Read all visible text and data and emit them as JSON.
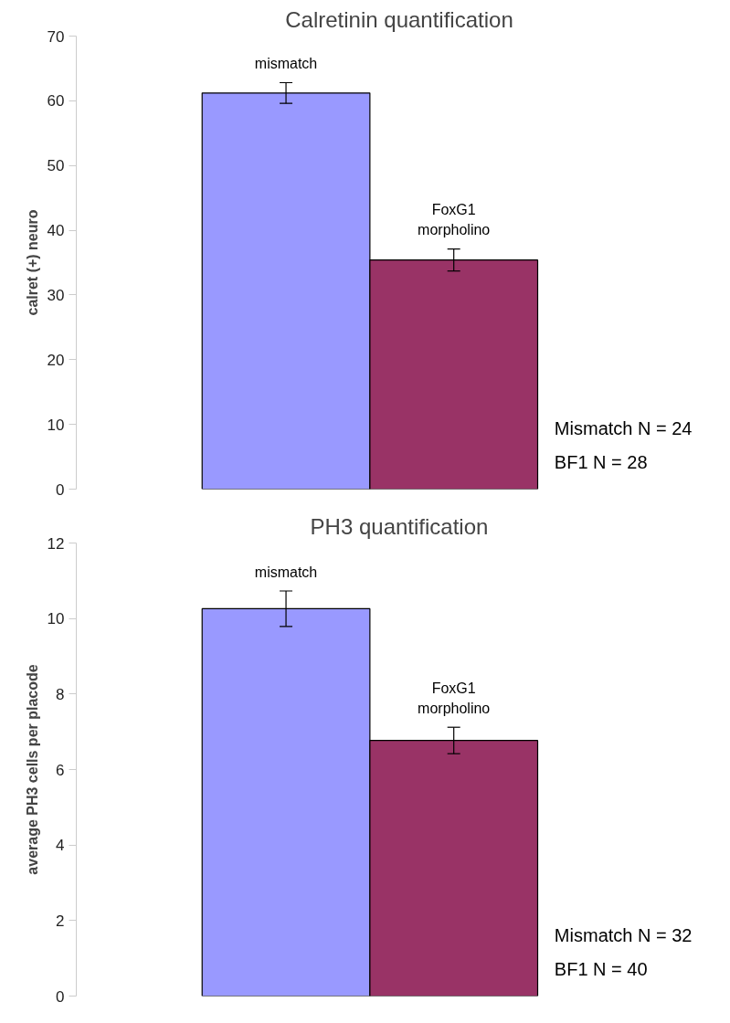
{
  "chart_data": [
    {
      "type": "bar",
      "title": "Calretinin quantification",
      "ylabel": "calret (+) neuro",
      "categories": [
        "mismatch",
        "FoxG1\nmorpholino"
      ],
      "values": [
        61.2,
        35.4
      ],
      "errors": [
        1.6,
        1.7
      ],
      "colors": [
        "#9999ff",
        "#993366"
      ],
      "ylim": [
        0,
        70
      ],
      "yticks": [
        0,
        10,
        20,
        30,
        40,
        50,
        60,
        70
      ],
      "grid": false,
      "tick_labels": "y",
      "annotations": [
        "Mismatch N = 24",
        "BF1 N = 28"
      ]
    },
    {
      "type": "bar",
      "title": "PH3 quantification",
      "ylabel": "average PH3 cells per placode",
      "categories": [
        "mismatch",
        "FoxG1\nmorpholino"
      ],
      "values": [
        10.26,
        6.77
      ],
      "errors": [
        0.47,
        0.35
      ],
      "colors": [
        "#9999ff",
        "#993366"
      ],
      "ylim": [
        0,
        12
      ],
      "yticks": [
        0,
        2,
        4,
        6,
        8,
        10,
        12
      ],
      "grid": false,
      "tick_labels": "y",
      "annotations": [
        "Mismatch N = 32",
        "BF1 N = 40"
      ]
    }
  ]
}
